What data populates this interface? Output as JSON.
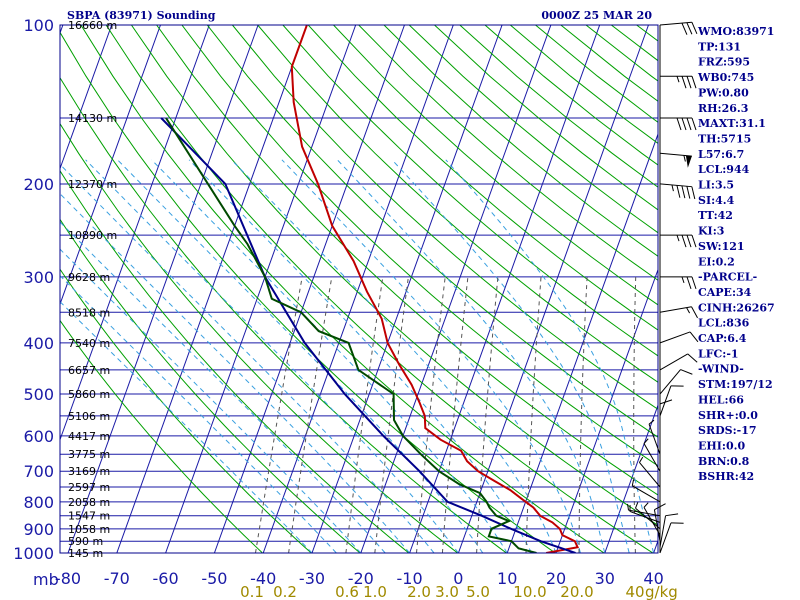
{
  "header": {
    "title": "SBPA (83971) Sounding",
    "time": "0000Z 25 MAR 20"
  },
  "chart_data": {
    "type": "line",
    "title": "SBPA (83971) Sounding",
    "xlabel": "",
    "ylabel": "mb",
    "xlim": [
      -80,
      40
    ],
    "ylim": [
      1000,
      100
    ],
    "y_scale": "log-pressure",
    "x_skew": "skew-T",
    "pressure_ticks": [
      100,
      200,
      300,
      400,
      500,
      600,
      700,
      800,
      900,
      1000
    ],
    "temperature_ticks": [
      -80,
      -70,
      -60,
      -50,
      -40,
      -30,
      -20,
      -10,
      0,
      10,
      20,
      30,
      40
    ],
    "mixing_ratio_labels": [
      "0.1",
      "0.2",
      "0.6",
      "1.0",
      "2.0",
      "3.0",
      "5.0",
      "10.0",
      "20.0",
      "40"
    ],
    "mixing_ratio_unit": "g/kg",
    "height_levels": [
      {
        "p": 100,
        "label": "16660 m"
      },
      {
        "p": 150,
        "label": "14130 m"
      },
      {
        "p": 200,
        "label": "12370 m"
      },
      {
        "p": 250,
        "label": "10890 m"
      },
      {
        "p": 300,
        "label": "9628 m"
      },
      {
        "p": 350,
        "label": "8518 m"
      },
      {
        "p": 400,
        "label": "7540 m"
      },
      {
        "p": 450,
        "label": "6657 m"
      },
      {
        "p": 500,
        "label": "5860 m"
      },
      {
        "p": 550,
        "label": "5106 m"
      },
      {
        "p": 600,
        "label": "4417 m"
      },
      {
        "p": 650,
        "label": "3775 m"
      },
      {
        "p": 700,
        "label": "3169 m"
      },
      {
        "p": 750,
        "label": "2597 m"
      },
      {
        "p": 800,
        "label": "2058 m"
      },
      {
        "p": 850,
        "label": "1547 m"
      },
      {
        "p": 900,
        "label": "1058 m"
      },
      {
        "p": 950,
        "label": "590 m"
      },
      {
        "p": 1000,
        "label": "145 m"
      }
    ],
    "series": [
      {
        "color": "#c00000",
        "x": [
          18,
          24,
          23,
          20,
          19,
          17,
          14,
          12,
          9,
          6,
          2,
          -2,
          -5,
          -7,
          -12,
          -16,
          -17,
          -19,
          -22,
          -26,
          -30,
          -33,
          -38,
          -43,
          -50,
          -56,
          -62,
          -67,
          -70,
          -70
        ],
        "y": [
          1000,
          975,
          950,
          925,
          900,
          875,
          850,
          820,
          790,
          760,
          730,
          700,
          670,
          640,
          610,
          580,
          550,
          520,
          480,
          440,
          400,
          360,
          320,
          280,
          240,
          200,
          170,
          140,
          120,
          100
        ]
      },
      {
        "color": "#00008b",
        "x": [
          24,
          16,
          9,
          2,
          -6,
          -14,
          -24,
          -35,
          -47,
          -60,
          -75,
          -93
        ],
        "y": [
          1000,
          950,
          900,
          850,
          800,
          700,
          600,
          500,
          400,
          300,
          200,
          150
        ]
      },
      {
        "color": "#004a00",
        "x": [
          16,
          12,
          10,
          5,
          5,
          8,
          5,
          3,
          2,
          0,
          -5,
          -10,
          -15,
          -20,
          -23,
          -25,
          -34,
          -38,
          -45,
          -50,
          -57,
          -60,
          -66,
          -70,
          -92
        ],
        "y": [
          1000,
          980,
          950,
          930,
          900,
          870,
          850,
          820,
          800,
          770,
          740,
          700,
          650,
          600,
          560,
          500,
          450,
          400,
          380,
          350,
          330,
          300,
          260,
          240,
          150
        ]
      }
    ]
  },
  "winds": [
    {
      "p": 1000,
      "dir": 200,
      "spd": 8
    },
    {
      "p": 975,
      "dir": 190,
      "spd": 10
    },
    {
      "p": 950,
      "dir": 170,
      "spd": 8
    },
    {
      "p": 925,
      "dir": 150,
      "spd": 7
    },
    {
      "p": 900,
      "dir": 130,
      "spd": 6
    },
    {
      "p": 875,
      "dir": 110,
      "spd": 6
    },
    {
      "p": 850,
      "dir": 100,
      "spd": 6
    },
    {
      "p": 800,
      "dir": 120,
      "spd": 7
    },
    {
      "p": 750,
      "dir": 140,
      "spd": 6
    },
    {
      "p": 700,
      "dir": 150,
      "spd": 7
    },
    {
      "p": 650,
      "dir": 160,
      "spd": 7
    },
    {
      "p": 600,
      "dir": 180,
      "spd": 8
    },
    {
      "p": 550,
      "dir": 200,
      "spd": 8
    },
    {
      "p": 500,
      "dir": 220,
      "spd": 9
    },
    {
      "p": 450,
      "dir": 240,
      "spd": 10
    },
    {
      "p": 400,
      "dir": 250,
      "spd": 12
    },
    {
      "p": 350,
      "dir": 260,
      "spd": 14
    },
    {
      "p": 300,
      "dir": 270,
      "spd": 25
    },
    {
      "p": 250,
      "dir": 270,
      "spd": 35
    },
    {
      "p": 200,
      "dir": 275,
      "spd": 45
    },
    {
      "p": 175,
      "dir": 275,
      "spd": 55
    },
    {
      "p": 150,
      "dir": 270,
      "spd": 40
    },
    {
      "p": 125,
      "dir": 270,
      "spd": 35
    },
    {
      "p": 100,
      "dir": 265,
      "spd": 30
    }
  ],
  "indices": [
    "WMO:83971",
    "TP:131",
    "FRZ:595",
    "WB0:745",
    "PW:0.80",
    "RH:26.3",
    "MAXT:31.1",
    "TH:5715",
    "L57:6.7",
    "LCL:944",
    "LI:3.5",
    "SI:4.4",
    "TT:42",
    "KI:3",
    "SW:121",
    "EI:0.2",
    "-PARCEL-",
    "CAPE:34",
    "CINH:26267",
    "LCL:836",
    "CAP:6.4",
    "LFC:-1",
    "-WIND-",
    "STM:197/12",
    "HEL:66",
    "SHR+:0.0",
    "SRDS:-17",
    "EHI:0.0",
    "BRN:0.8",
    "BSHR:42"
  ],
  "colors": {
    "frame": "#00008b",
    "isotherm": "#1a1aa6",
    "isobar": "#1a1aa6",
    "dry_adiabat": "#00a000",
    "moist_adiabat": "#3aa0e0",
    "mixing_ratio": "#555555"
  }
}
